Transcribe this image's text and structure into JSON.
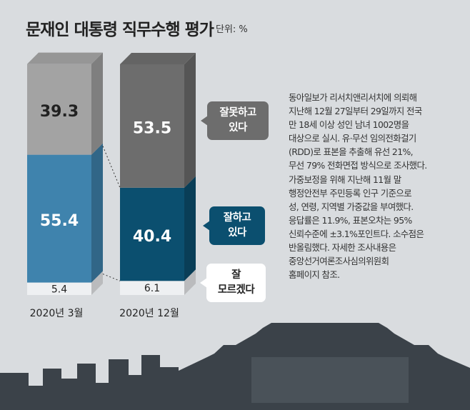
{
  "header": {
    "title": "문재인 대통령 직무수행 평가",
    "unit": "단위: %"
  },
  "chart_data": {
    "type": "bar",
    "stacked": true,
    "title": "문재인 대통령 직무수행 평가",
    "unit": "%",
    "categories": [
      "2020년 3월",
      "2020년 12월"
    ],
    "series": [
      {
        "name": "잘 모르겠다",
        "values": [
          5.4,
          6.1
        ],
        "color": "#eef0f2"
      },
      {
        "name": "잘하고 있다",
        "values": [
          55.4,
          40.4
        ],
        "color": "#3f83ad"
      },
      {
        "name": "잘못하고 있다",
        "values": [
          39.3,
          53.5
        ],
        "color": "#a3a3a3"
      }
    ],
    "series_colors_by_category": [
      [
        "#eef0f2",
        "#3f83ad",
        "#a3a3a3"
      ],
      [
        "#eef0f2",
        "#0b4f6f",
        "#6d6d6d"
      ]
    ],
    "value_labels": [
      [
        "5.4",
        "55.4",
        "39.3"
      ],
      [
        "6.1",
        "40.4",
        "53.5"
      ]
    ],
    "ylim": [
      0,
      100
    ]
  },
  "callouts": {
    "negative": [
      "잘못하고",
      "있다"
    ],
    "positive": [
      "잘하고",
      "있다"
    ],
    "unknown": [
      "잘",
      "모르겠다"
    ]
  },
  "description": [
    "동아일보가 리서치앤리서치에 의뢰해",
    "지난해 12월 27일부터 29일까지 전국",
    "만 18세 이상 성인 남녀 1002명을",
    "대상으로 실시. 유·무선 임의전화걸기",
    "(RDD)로 표본을 추출해 유선 21%,",
    "무선 79% 전화면접 방식으로 조사했다.",
    "가중보정을 위해 지난해 11월 말",
    "행정안전부 주민등록 인구 기준으로",
    "성, 연령, 지역별 가중값을 부여했다.",
    "응답률은 11.9%, 표본오차는 95%",
    "신뢰수준에 ±3.1%포인트다. 소수점은",
    "반올림했다. 자세한 조사내용은",
    "중앙선거여론조사심의위원회",
    "홈페이지 참조."
  ],
  "colors": {
    "background": "#d9dcdf",
    "skyline": "#3b4249"
  }
}
